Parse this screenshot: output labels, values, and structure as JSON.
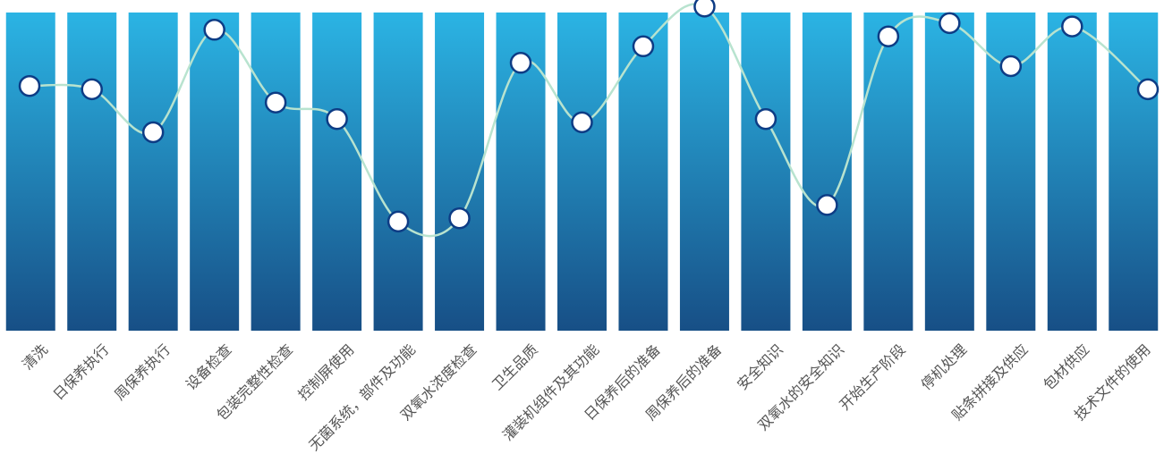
{
  "chart_data": {
    "type": "line",
    "title": "",
    "xlabel": "",
    "ylabel": "",
    "categories": [
      "清洗",
      "日保养执行",
      "周保养执行",
      "设备检查",
      "包装完整性检查",
      "控制屏使用",
      "无菌系统，部件及功能",
      "双氧水浓度检查",
      "卫生品质",
      "灌装机组件及其功能",
      "日保养后的准备",
      "周保养后的准备",
      "安全知识",
      "双氧水的安全知识",
      "开始生产阶段",
      "停机处理",
      "贴条拼接及供应",
      "包材供应",
      "技术文件的使用"
    ],
    "series": [
      {
        "values": [
          74,
          73,
          60,
          91,
          69,
          64,
          33,
          34,
          81,
          63,
          86,
          98,
          64,
          38,
          89,
          93,
          80,
          92,
          73
        ]
      }
    ],
    "ylim": [
      0,
      100
    ],
    "grid": false,
    "legend": "none",
    "colors": {
      "bar_top": "#2bb4e4",
      "bar_bottom": "#174f86",
      "line": "#b8e3cf",
      "marker_fill": "#ffffff",
      "marker_stroke": "#0d3c85",
      "label": "#555555"
    }
  }
}
